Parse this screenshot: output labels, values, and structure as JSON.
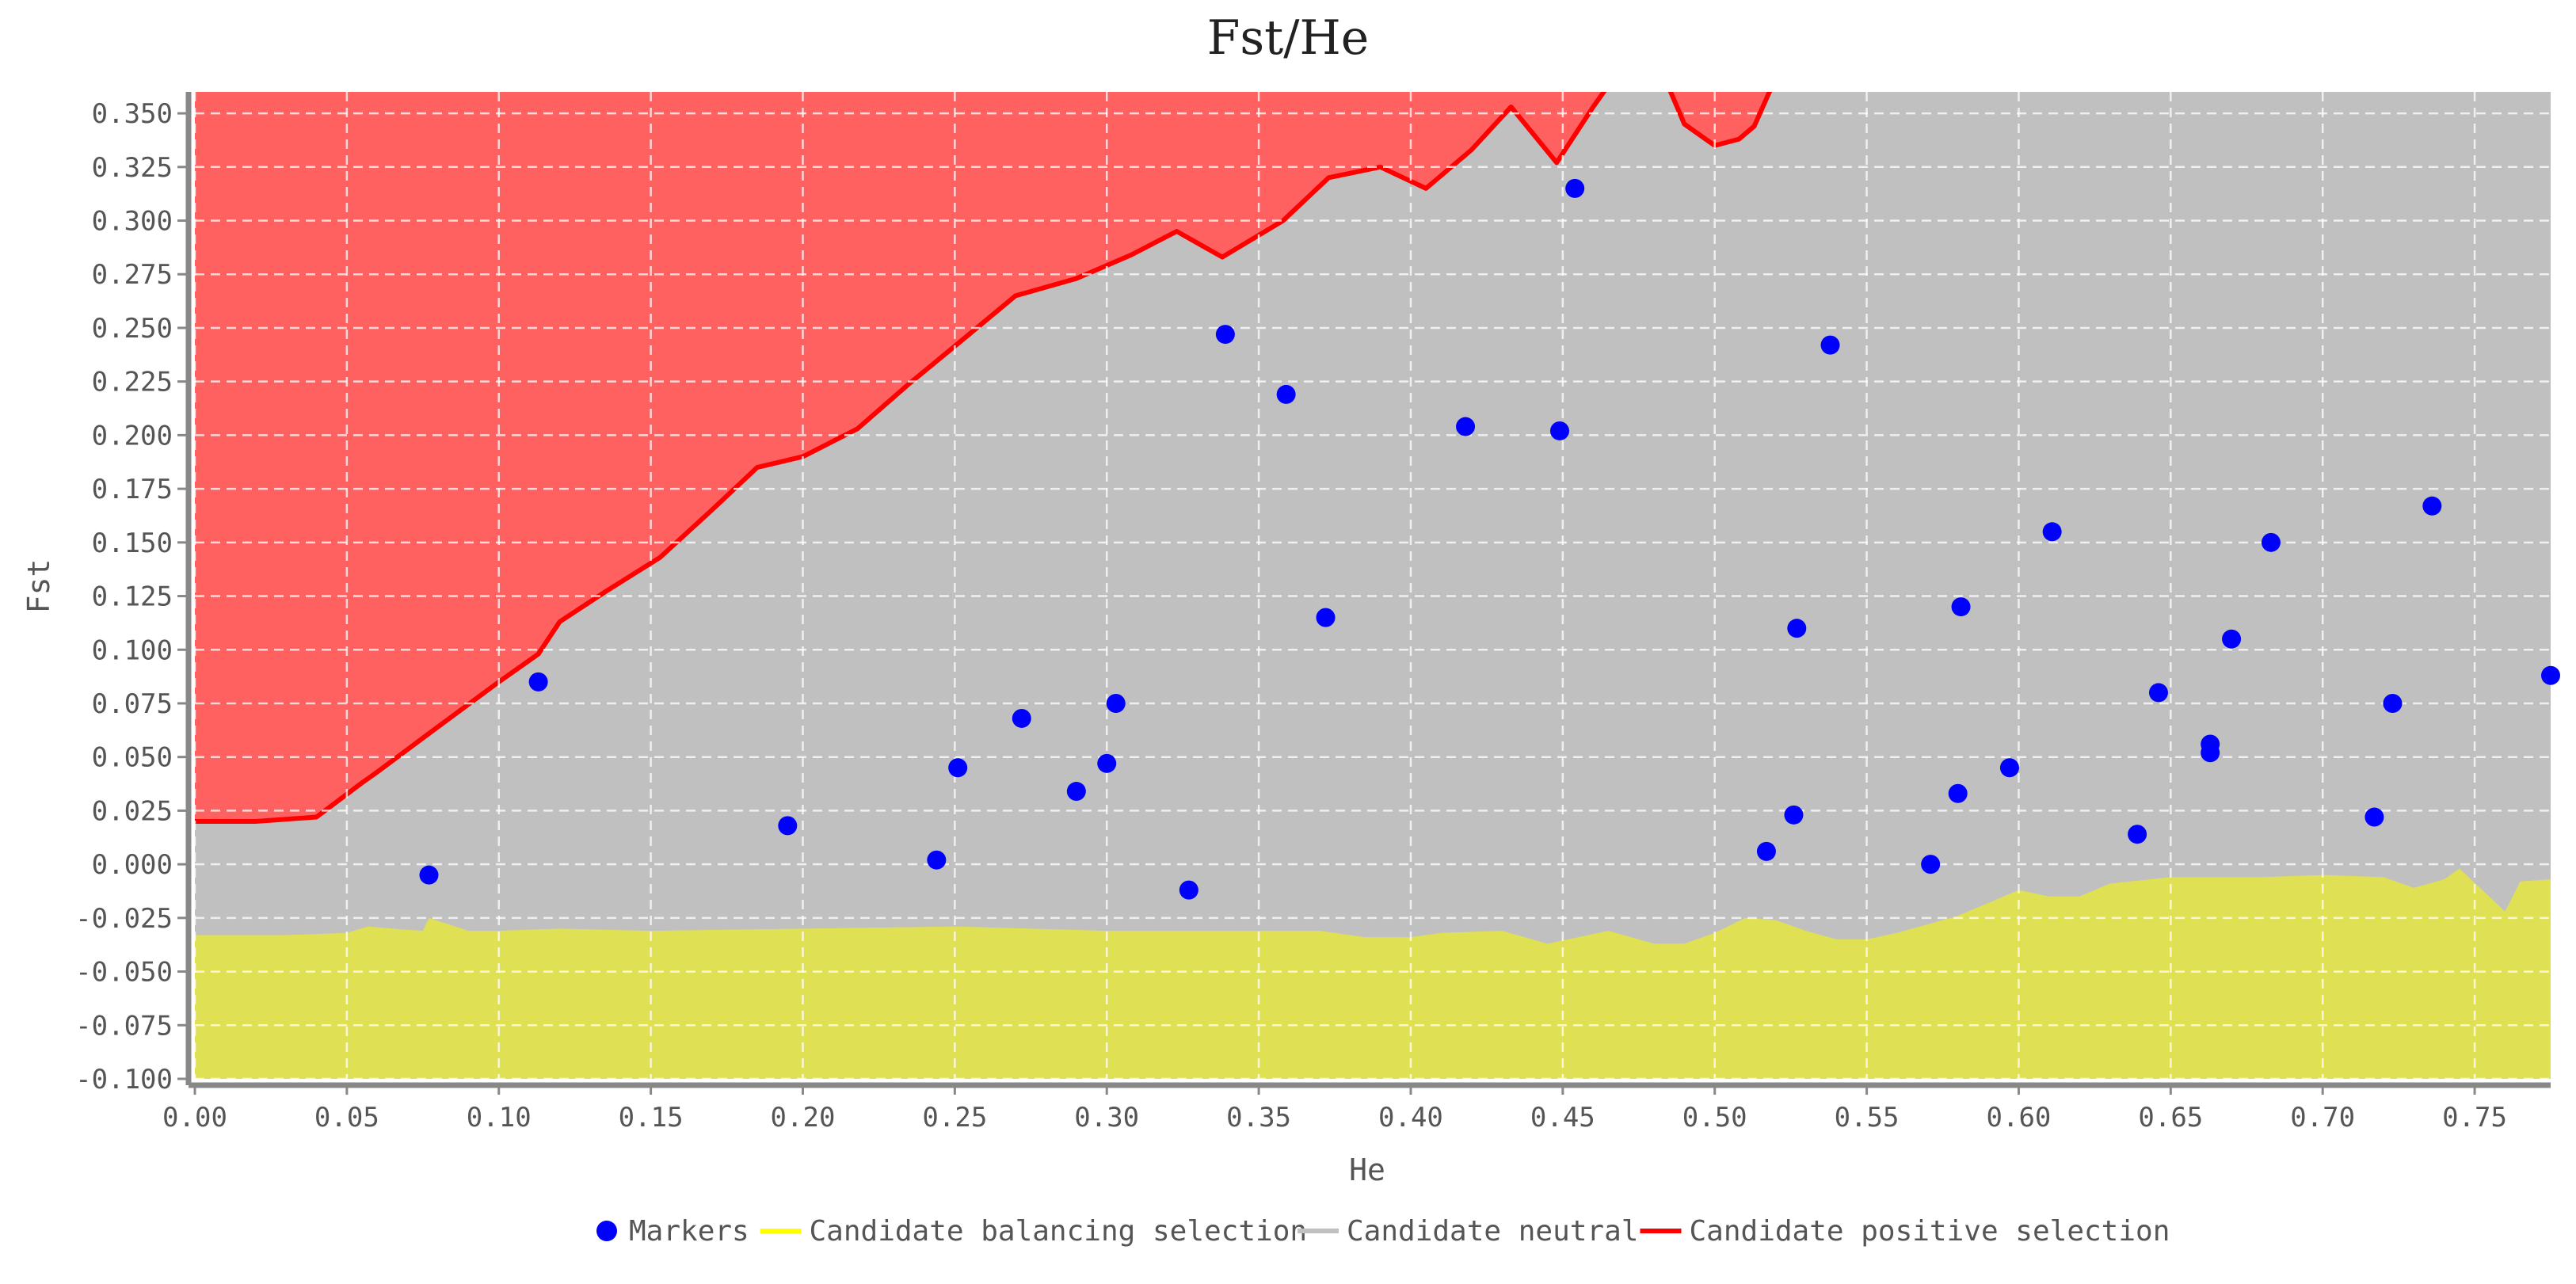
{
  "chart_data": {
    "type": "scatter",
    "title": "Fst/He",
    "xlabel": "He",
    "ylabel": "Fst",
    "xlim": [
      0.0,
      0.775
    ],
    "ylim": [
      -0.1,
      0.36
    ],
    "x_ticks": [
      "0.00",
      "0.05",
      "0.10",
      "0.15",
      "0.20",
      "0.25",
      "0.30",
      "0.35",
      "0.40",
      "0.45",
      "0.50",
      "0.55",
      "0.60",
      "0.65",
      "0.70",
      "0.75"
    ],
    "y_ticks": [
      "-0.100",
      "-0.075",
      "-0.050",
      "-0.025",
      "0.000",
      "0.025",
      "0.050",
      "0.075",
      "0.100",
      "0.125",
      "0.150",
      "0.175",
      "0.200",
      "0.225",
      "0.250",
      "0.275",
      "0.300",
      "0.325",
      "0.350"
    ],
    "grid": true,
    "legend_position": "bottom",
    "legend": [
      {
        "label": "Markers",
        "symbol": "dot",
        "color": "#0000ff"
      },
      {
        "label": "Candidate balancing selection",
        "symbol": "line",
        "color": "#ffff00"
      },
      {
        "label": "Candidate neutral",
        "symbol": "line",
        "color": "#c0c0c0"
      },
      {
        "label": "Candidate positive selection",
        "symbol": "line",
        "color": "#ff0000"
      }
    ],
    "colors": {
      "positive_fill": "#ff6060",
      "positive_line": "#ff0000",
      "neutral_fill": "#c0c0c0",
      "balancing_fill": "#e0e055",
      "markers": "#0000ff"
    },
    "positive_selection_boundary": {
      "x": [
        0.0,
        0.02,
        0.04,
        0.055,
        0.06,
        0.078,
        0.1,
        0.113,
        0.12,
        0.135,
        0.153,
        0.17,
        0.185,
        0.2,
        0.218,
        0.235,
        0.253,
        0.27,
        0.29,
        0.308,
        0.323,
        0.338,
        0.358,
        0.373,
        0.39,
        0.405,
        0.42,
        0.433,
        0.448,
        0.46,
        0.4685
      ],
      "y": [
        0.02,
        0.02,
        0.022,
        0.038,
        0.043,
        0.062,
        0.085,
        0.098,
        0.113,
        0.127,
        0.143,
        0.165,
        0.185,
        0.19,
        0.203,
        0.224,
        0.245,
        0.265,
        0.273,
        0.284,
        0.295,
        0.283,
        0.3,
        0.32,
        0.325,
        0.315,
        0.333,
        0.353,
        0.327,
        0.353,
        0.37
      ]
    },
    "positive_selection_boundary_2": {
      "x": [
        0.4825,
        0.49,
        0.5,
        0.508,
        0.513,
        0.518,
        0.5225
      ],
      "y": [
        0.37,
        0.345,
        0.335,
        0.338,
        0.344,
        0.36,
        0.37
      ]
    },
    "balancing_selection_boundary": {
      "x": [
        0.0,
        0.03,
        0.05,
        0.057,
        0.065,
        0.075,
        0.077,
        0.09,
        0.1,
        0.12,
        0.15,
        0.2,
        0.25,
        0.3,
        0.35,
        0.37,
        0.385,
        0.4,
        0.41,
        0.43,
        0.445,
        0.455,
        0.465,
        0.48,
        0.49,
        0.5,
        0.51,
        0.52,
        0.53,
        0.54,
        0.55,
        0.56,
        0.58,
        0.6,
        0.61,
        0.62,
        0.63,
        0.65,
        0.68,
        0.7,
        0.72,
        0.73,
        0.74,
        0.745,
        0.76,
        0.765,
        0.775
      ],
      "y": [
        -0.033,
        -0.033,
        -0.032,
        -0.029,
        -0.03,
        -0.031,
        -0.025,
        -0.031,
        -0.031,
        -0.03,
        -0.031,
        -0.03,
        -0.029,
        -0.031,
        -0.031,
        -0.031,
        -0.034,
        -0.034,
        -0.032,
        -0.031,
        -0.037,
        -0.034,
        -0.031,
        -0.037,
        -0.037,
        -0.032,
        -0.025,
        -0.026,
        -0.031,
        -0.035,
        -0.035,
        -0.032,
        -0.024,
        -0.012,
        -0.015,
        -0.015,
        -0.009,
        -0.006,
        -0.006,
        -0.005,
        -0.006,
        -0.011,
        -0.007,
        -0.002,
        -0.022,
        -0.008,
        -0.007
      ]
    },
    "markers": {
      "x": [
        0.077,
        0.113,
        0.195,
        0.244,
        0.251,
        0.272,
        0.29,
        0.3,
        0.303,
        0.327,
        0.339,
        0.359,
        0.372,
        0.418,
        0.449,
        0.454,
        0.517,
        0.526,
        0.527,
        0.538,
        0.571,
        0.58,
        0.581,
        0.597,
        0.611,
        0.639,
        0.646,
        0.663,
        0.663,
        0.67,
        0.683,
        0.717,
        0.723,
        0.736,
        0.775
      ],
      "y": [
        -0.005,
        0.085,
        0.018,
        0.002,
        0.045,
        0.068,
        0.034,
        0.047,
        0.075,
        -0.012,
        0.247,
        0.219,
        0.115,
        0.204,
        0.202,
        0.315,
        0.006,
        0.023,
        0.11,
        0.242,
        0.0,
        0.033,
        0.12,
        0.045,
        0.155,
        0.014,
        0.08,
        0.056,
        0.052,
        0.105,
        0.15,
        0.022,
        0.075,
        0.167,
        0.088
      ]
    }
  }
}
